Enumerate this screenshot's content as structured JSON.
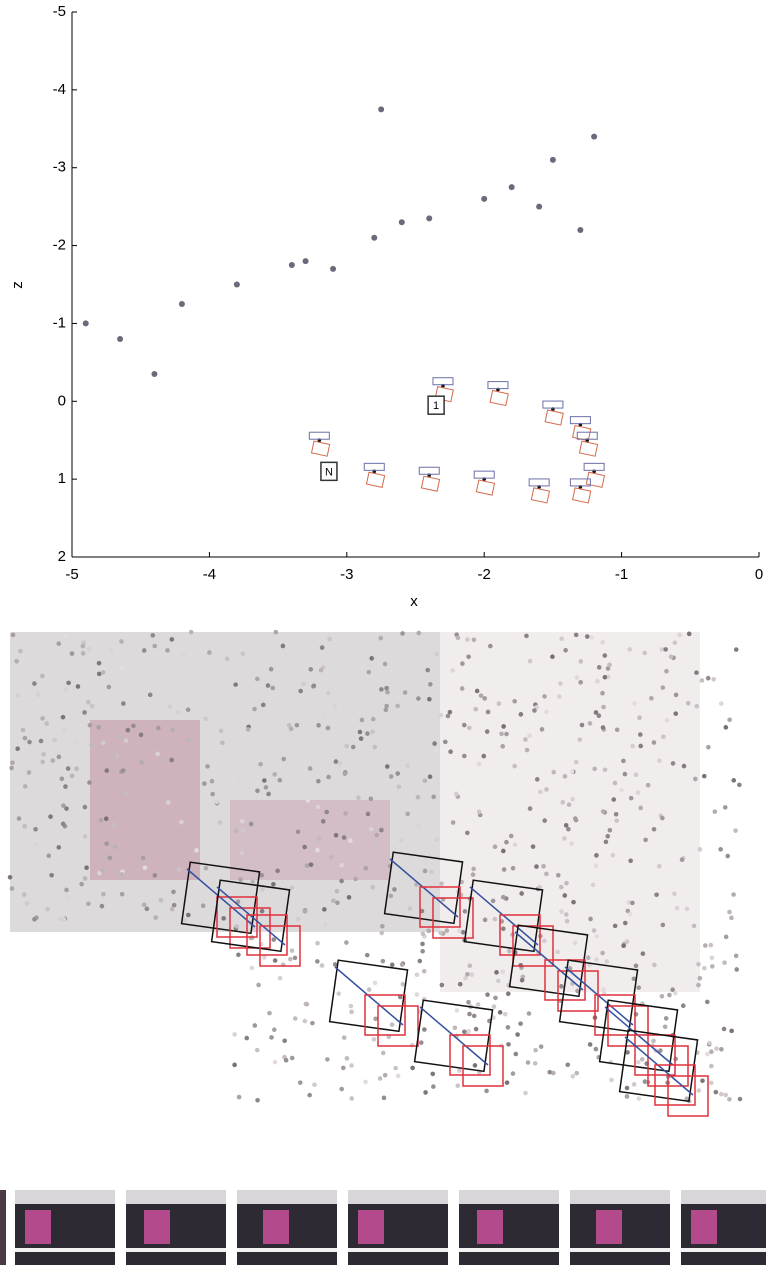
{
  "chart_data": {
    "type": "scatter",
    "xlabel": "x",
    "ylabel": "z",
    "xlim": [
      -5,
      0
    ],
    "xticks": [
      -5,
      -4,
      -3,
      -2,
      -1,
      0
    ],
    "ylim": [
      -5,
      2
    ],
    "yticks": [
      -5,
      -4,
      -3,
      -2,
      -1,
      0,
      1,
      2
    ],
    "y_inverted": true,
    "series": [
      {
        "color": "#6a6a7a",
        "x": [
          -4.9,
          -4.65,
          -4.4,
          -4.2,
          -3.8,
          -3.4,
          -3.1,
          -2.8,
          -2.4,
          -2.0,
          -1.8,
          -1.6,
          -1.3,
          -1.5,
          -1.2,
          -2.75,
          -3.3,
          -2.6
        ],
        "values": [
          -1.0,
          -0.8,
          -0.35,
          -1.25,
          -1.5,
          -1.75,
          -1.7,
          -2.1,
          -2.35,
          -2.6,
          -2.75,
          -2.5,
          -2.2,
          -3.1,
          -3.4,
          -3.75,
          -1.8,
          -2.3
        ]
      },
      {
        "color": "#111111",
        "x": [
          -2.3,
          -1.9,
          -1.5,
          -1.3,
          -1.25,
          -1.2,
          -1.3,
          -1.6,
          -2.0,
          -2.4,
          -2.8,
          -3.2
        ],
        "values": [
          -0.2,
          -0.15,
          0.1,
          0.3,
          0.5,
          0.9,
          1.1,
          1.1,
          1.0,
          0.95,
          0.9,
          0.5
        ]
      }
    ],
    "annotations": [
      {
        "text": "1",
        "x": -2.35,
        "y": 0.05
      },
      {
        "text": "N",
        "x": -3.13,
        "y": 0.9
      }
    ]
  }
}
